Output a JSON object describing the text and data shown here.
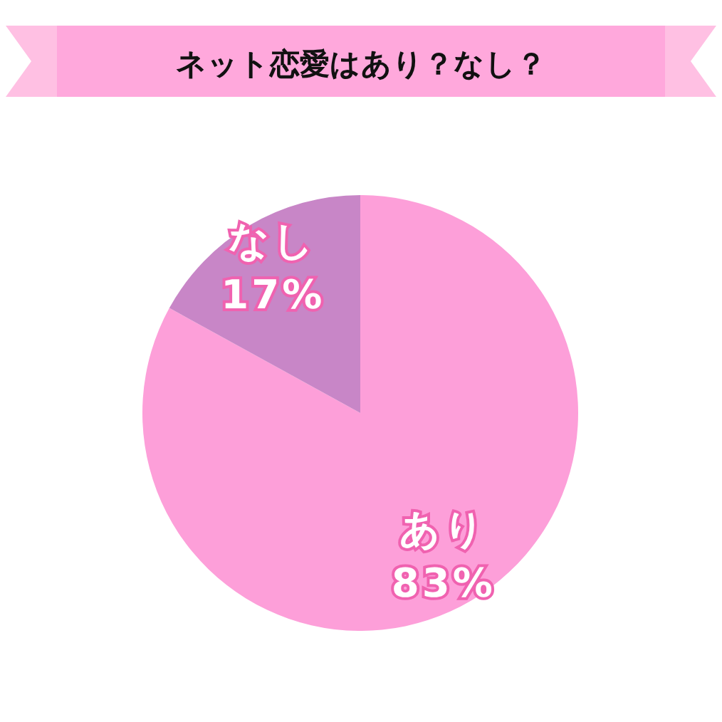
{
  "chart_data": {
    "type": "pie",
    "title": "ネット恋愛はあり？なし？",
    "categories": [
      "あり",
      "なし"
    ],
    "values": [
      83,
      17
    ],
    "colors": [
      "#fd9fd9",
      "#c886c7"
    ],
    "value_labels": [
      "83%",
      "17%"
    ],
    "legend": false
  }
}
